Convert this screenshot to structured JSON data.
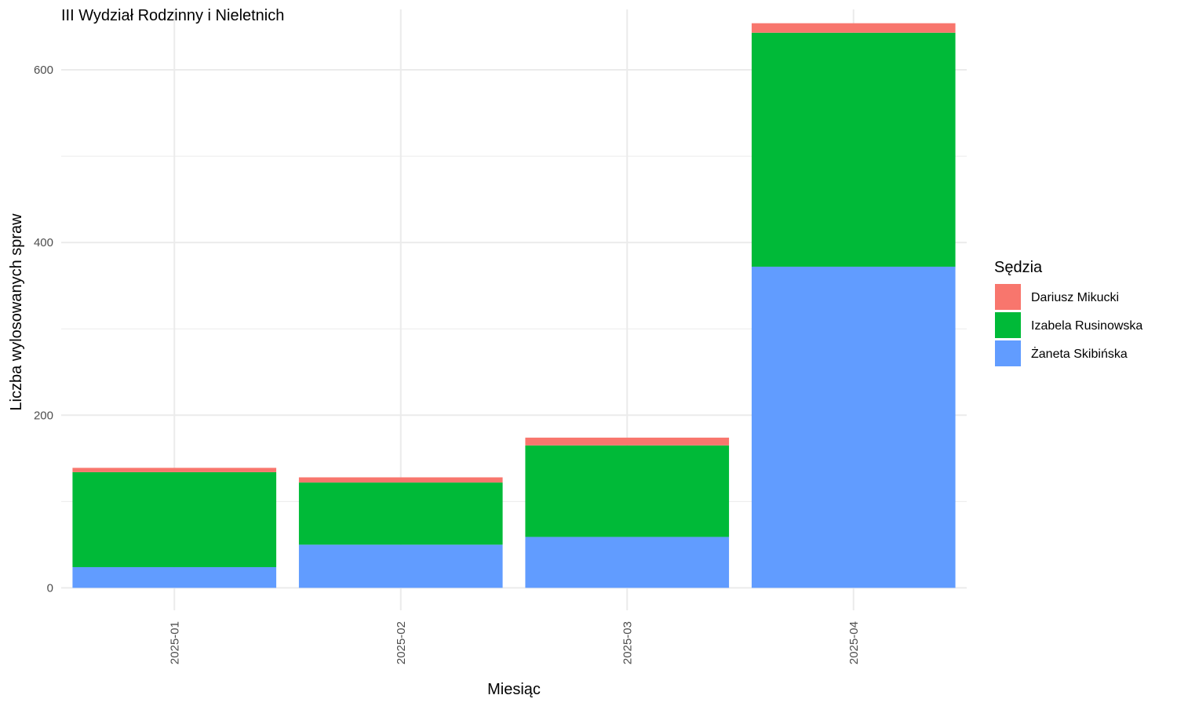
{
  "chart_data": {
    "type": "bar",
    "stacked": true,
    "title": "III Wydział Rodzinny i Nieletnich",
    "xlabel": "Miesiąc",
    "ylabel": "Liczba wylosowanych spraw",
    "ylim": [
      -26,
      670
    ],
    "yticks": [
      0,
      200,
      400,
      600
    ],
    "grid": true,
    "categories": [
      "2025-01",
      "2025-02",
      "2025-03",
      "2025-04"
    ],
    "legend": {
      "title": "Sędzia",
      "position": "right"
    },
    "series": [
      {
        "name": "Dariusz Mikucki",
        "color": "#F8766D",
        "values": [
          5,
          6,
          9,
          11
        ]
      },
      {
        "name": "Izabela Rusinowska",
        "color": "#00BA38",
        "values": [
          110,
          72,
          106,
          271
        ]
      },
      {
        "name": "Żaneta Skibińska",
        "color": "#619CFF",
        "values": [
          24,
          50,
          59,
          372
        ]
      }
    ],
    "stack_order_bottom_to_top": [
      "Żaneta Skibińska",
      "Izabela Rusinowska",
      "Dariusz Mikucki"
    ]
  }
}
